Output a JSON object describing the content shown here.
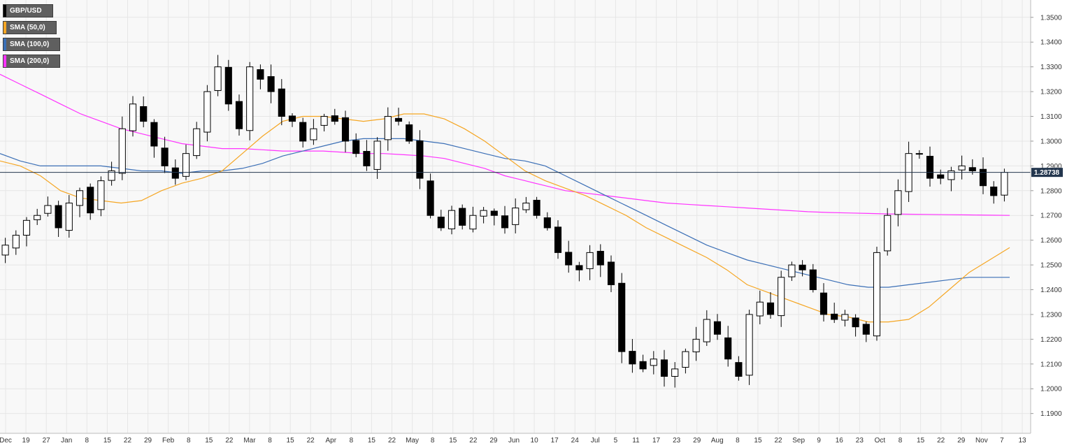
{
  "chart_data": {
    "type": "candlestick",
    "symbol": "GBP/USD",
    "legend": [
      {
        "label": "GBP/USD",
        "color": "#000000"
      },
      {
        "label": "SMA (50,0)",
        "color": "#f5a623"
      },
      {
        "label": "SMA (100,0)",
        "color": "#3b6fb6"
      },
      {
        "label": "SMA (200,0)",
        "color": "#ff33ff"
      }
    ],
    "legend_position": "top-left",
    "ylim": [
      1.182,
      1.357
    ],
    "y_ticks": [
      "1.1900",
      "1.2000",
      "1.2100",
      "1.2200",
      "1.2300",
      "1.2400",
      "1.2500",
      "1.2600",
      "1.2700",
      "1.2800",
      "1.2900",
      "1.3000",
      "1.3100",
      "1.3200",
      "1.3300",
      "1.3400",
      "1.3500"
    ],
    "x_ticks": [
      "Dec",
      "19",
      "27",
      "Jan",
      "8",
      "15",
      "22",
      "29",
      "Feb",
      "8",
      "15",
      "22",
      "Mar",
      "8",
      "15",
      "22",
      "Apr",
      "8",
      "15",
      "22",
      "May",
      "8",
      "15",
      "22",
      "29",
      "Jun",
      "10",
      "17",
      "24",
      "Jul",
      "5",
      "11",
      "17",
      "23",
      "29",
      "Aug",
      "8",
      "15",
      "22",
      "Sep",
      "9",
      "16",
      "23",
      "Oct",
      "8",
      "15",
      "22",
      "29",
      "Nov",
      "7",
      "13"
    ],
    "current_price": "1.28738",
    "current_price_value": 1.28738,
    "grid": true,
    "sma_50": [
      1.292,
      1.29,
      1.286,
      1.28,
      1.277,
      1.276,
      1.275,
      1.276,
      1.28,
      1.283,
      1.285,
      1.288,
      1.295,
      1.302,
      1.308,
      1.31,
      1.31,
      1.309,
      1.308,
      1.309,
      1.311,
      1.311,
      1.309,
      1.305,
      1.3,
      1.294,
      1.288,
      1.284,
      1.281,
      1.278,
      1.274,
      1.27,
      1.265,
      1.261,
      1.257,
      1.253,
      1.248,
      1.242,
      1.239,
      1.236,
      1.233,
      1.23,
      1.229,
      1.227,
      1.227,
      1.228,
      1.233,
      1.24,
      1.247,
      1.252,
      1.257
    ],
    "sma_100": [
      1.295,
      1.292,
      1.29,
      1.29,
      1.29,
      1.29,
      1.289,
      1.288,
      1.288,
      1.287,
      1.288,
      1.288,
      1.289,
      1.291,
      1.294,
      1.296,
      1.298,
      1.3,
      1.301,
      1.301,
      1.301,
      1.3,
      1.299,
      1.297,
      1.295,
      1.293,
      1.292,
      1.29,
      1.286,
      1.282,
      1.278,
      1.274,
      1.27,
      1.266,
      1.262,
      1.258,
      1.255,
      1.252,
      1.25,
      1.248,
      1.246,
      1.244,
      1.242,
      1.241,
      1.241,
      1.242,
      1.243,
      1.244,
      1.245,
      1.245,
      1.245
    ],
    "sma_200": [
      1.327,
      1.323,
      1.319,
      1.315,
      1.311,
      1.308,
      1.305,
      1.303,
      1.301,
      1.299,
      1.298,
      1.297,
      1.297,
      1.2965,
      1.296,
      1.296,
      1.296,
      1.2955,
      1.295,
      1.295,
      1.2945,
      1.294,
      1.293,
      1.291,
      1.289,
      1.286,
      1.284,
      1.282,
      1.28,
      1.279,
      1.278,
      1.277,
      1.276,
      1.275,
      1.2745,
      1.274,
      1.2735,
      1.273,
      1.2725,
      1.272,
      1.2715,
      1.2712,
      1.271,
      1.2708,
      1.2706,
      1.2705,
      1.2704,
      1.2703,
      1.2702,
      1.2701,
      1.27
    ],
    "closes": [
      1.258,
      1.262,
      1.268,
      1.27,
      1.274,
      1.265,
      1.275,
      1.28,
      1.271,
      1.284,
      1.288,
      1.305,
      1.315,
      1.308,
      1.298,
      1.29,
      1.285,
      1.295,
      1.305,
      1.32,
      1.33,
      1.315,
      1.305,
      1.33,
      1.325,
      1.32,
      1.31,
      1.308,
      1.3,
      1.305,
      1.31,
      1.308,
      1.3,
      1.295,
      1.29,
      1.3,
      1.31,
      1.308,
      1.3,
      1.285,
      1.27,
      1.265,
      1.272,
      1.266,
      1.27,
      1.272,
      1.27,
      1.265,
      1.273,
      1.275,
      1.27,
      1.265,
      1.255,
      1.25,
      1.248,
      1.255,
      1.25,
      1.242,
      1.215,
      1.21,
      1.208,
      1.212,
      1.205,
      1.208,
      1.215,
      1.22,
      1.228,
      1.222,
      1.212,
      1.205,
      1.23,
      1.235,
      1.23,
      1.245,
      1.25,
      1.248,
      1.24,
      1.23,
      1.228,
      1.23,
      1.225,
      1.222,
      1.255,
      1.27,
      1.28,
      1.295,
      1.295,
      1.285,
      1.285,
      1.288,
      1.29,
      1.288,
      1.282,
      1.278,
      1.2874
    ]
  }
}
